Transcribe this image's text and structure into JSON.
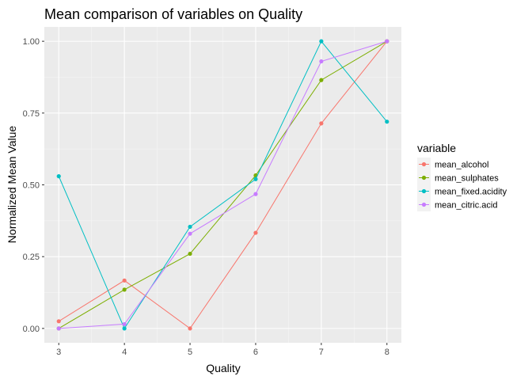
{
  "chart_data": {
    "type": "line",
    "title": "Mean comparison of variables on Quality",
    "xlabel": "Quality",
    "ylabel": "Normalized Mean Value",
    "x": [
      3,
      4,
      5,
      6,
      7,
      8
    ],
    "xlim": [
      2.78,
      8.22
    ],
    "ylim": [
      -0.05,
      1.05
    ],
    "x_ticks": [
      "3",
      "4",
      "5",
      "6",
      "7",
      "8"
    ],
    "y_ticks": [
      "0.00",
      "0.25",
      "0.50",
      "0.75",
      "1.00"
    ],
    "y_tick_values": [
      0,
      0.25,
      0.5,
      0.75,
      1.0
    ],
    "grid": true,
    "legend_title": "variable",
    "legend_position": "right",
    "series": [
      {
        "name": "mean_alcohol",
        "color": "#F8766D",
        "values": [
          0.025,
          0.167,
          0.0,
          0.333,
          0.714,
          1.0
        ]
      },
      {
        "name": "mean_sulphates",
        "color": "#7CAE00",
        "values": [
          0.0,
          0.135,
          0.26,
          0.533,
          0.865,
          1.0
        ]
      },
      {
        "name": "mean_fixed.acidity",
        "color": "#00BFC4",
        "values": [
          0.53,
          0.0,
          0.354,
          0.52,
          1.0,
          0.72
        ]
      },
      {
        "name": "mean_citric.acid",
        "color": "#C77CFF",
        "values": [
          0.0,
          0.015,
          0.33,
          0.468,
          0.93,
          1.0
        ]
      }
    ]
  }
}
